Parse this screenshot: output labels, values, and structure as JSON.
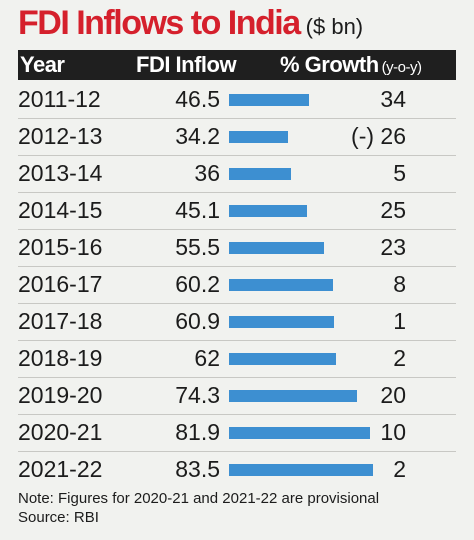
{
  "title": "FDI Inflows to India",
  "unit": "($ bn)",
  "header": {
    "year": "Year",
    "inflow": "FDI Inflow",
    "growth": "% Growth",
    "growth_sub": "(y-o-y)"
  },
  "note": "Note: Figures for 2020-21 and 2021-22 are provisional",
  "source": "Source: RBI",
  "colors": {
    "title": "#d5202c",
    "bar": "#3d8fd1",
    "header_bg": "#1f1f1f",
    "background": "#f1f2ef"
  },
  "chart_data": {
    "type": "table",
    "title": "FDI Inflows to India",
    "columns": [
      "Year",
      "FDI Inflow",
      "% Growth (y-o-y)"
    ],
    "categories": [
      "2011-12",
      "2012-13",
      "2013-14",
      "2014-15",
      "2015-16",
      "2016-17",
      "2017-18",
      "2018-19",
      "2019-20",
      "2020-21",
      "2021-22"
    ],
    "values": [
      46.5,
      34.2,
      36,
      45.1,
      55.5,
      60.2,
      60.9,
      62,
      74.3,
      81.9,
      83.5
    ],
    "value_labels": [
      "46.5",
      "34.2",
      "36",
      "45.1",
      "55.5",
      "60.2",
      "60.9",
      "62",
      "74.3",
      "81.9",
      "83.5"
    ],
    "growth": [
      "34",
      "(-) 26",
      "5",
      "25",
      "23",
      "8",
      "1",
      "2",
      "20",
      "10",
      "2"
    ],
    "bar_max": 100
  }
}
